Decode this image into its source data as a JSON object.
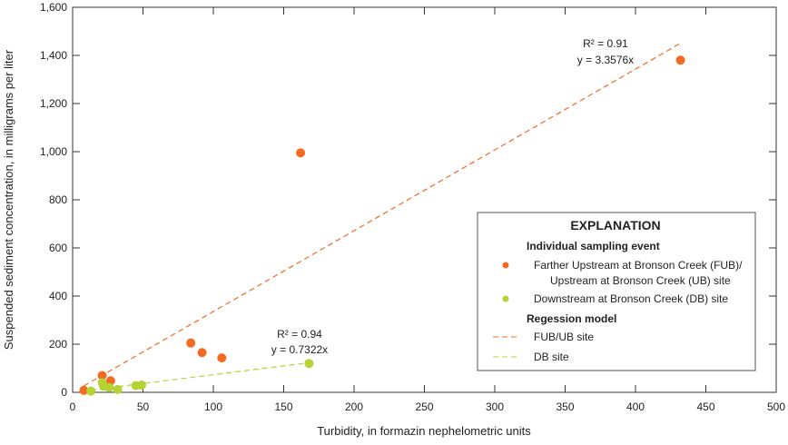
{
  "chart_data": {
    "type": "scatter",
    "xlabel": "Turbidity, in formazin nephelometric units",
    "ylabel": "Suspended sediment concentration,  in milligrams per liter",
    "xlim": [
      0,
      500
    ],
    "ylim": [
      0,
      1600
    ],
    "xticks": [
      0,
      50,
      100,
      150,
      200,
      250,
      300,
      350,
      400,
      450,
      500
    ],
    "yticks": [
      0,
      200,
      400,
      600,
      800,
      1000,
      1200,
      1400,
      1600
    ],
    "ytick_labels": [
      "0",
      "200",
      "400",
      "600",
      "800",
      "1,000",
      "1,200",
      "1,400",
      "1,600"
    ],
    "series": [
      {
        "name": "Farther Upstream at Bronson Creek (FUB)/ Upstream at Bronson Creek (UB) site",
        "color": "#f26b21",
        "points": [
          [
            8,
            8
          ],
          [
            21,
            70
          ],
          [
            27,
            48
          ],
          [
            84,
            205
          ],
          [
            92,
            165
          ],
          [
            106,
            143
          ],
          [
            162,
            995
          ],
          [
            432,
            1380
          ]
        ]
      },
      {
        "name": "Downstream at Bronson Creek (DB) site",
        "color": "#b5d334",
        "points": [
          [
            13,
            5
          ],
          [
            21,
            40
          ],
          [
            22,
            25
          ],
          [
            26,
            20
          ],
          [
            32,
            12
          ],
          [
            45,
            28
          ],
          [
            49,
            30
          ],
          [
            168,
            120
          ]
        ]
      }
    ],
    "regressions": [
      {
        "name": "FUB/UB site",
        "slope": 3.3576,
        "x_range": [
          8,
          432
        ],
        "color": "#f26b21",
        "r2_label": "R² = 0.91",
        "eq_label": "y = 3.3576x"
      },
      {
        "name": "DB site",
        "slope": 0.7322,
        "x_range": [
          13,
          168
        ],
        "color": "#b5d334",
        "r2_label": "R² = 0.94",
        "eq_label": "y = 0.7322x"
      }
    ],
    "legend": {
      "title": "EXPLANATION",
      "section1": "Individual sampling event",
      "item1a": "Farther Upstream at Bronson Creek (FUB)/",
      "item1b": "Upstream at Bronson Creek (UB) site",
      "item2": "Downstream at Bronson Creek (DB) site",
      "section2": "Regession model",
      "item3": "FUB/UB site",
      "item4": "DB site",
      "position": "right"
    }
  }
}
